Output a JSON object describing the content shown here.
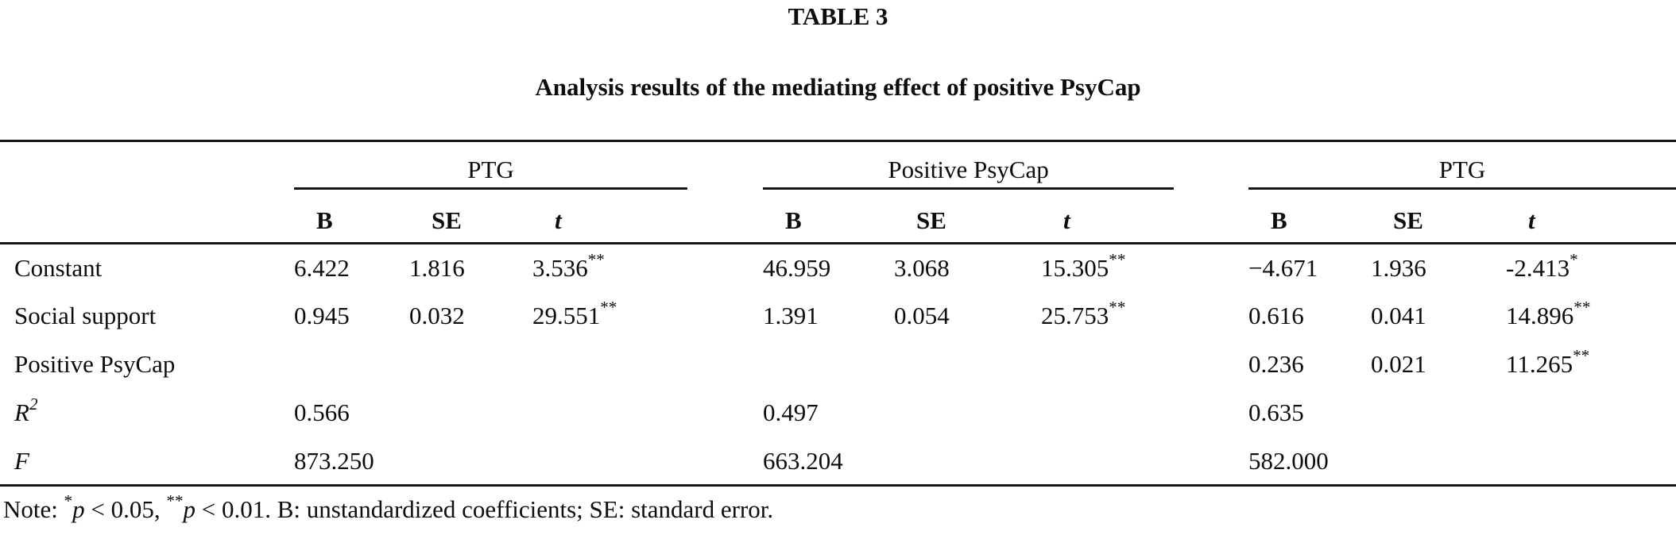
{
  "page": {
    "title": "TABLE 3",
    "subtitle": "Analysis results of the mediating effect of positive PsyCap"
  },
  "table": {
    "groups": [
      {
        "label": "PTG",
        "columns": [
          {
            "label": "B"
          },
          {
            "label": "SE"
          },
          {
            "label": "t"
          }
        ]
      },
      {
        "label": "Positive PsyCap",
        "columns": [
          {
            "label": "B"
          },
          {
            "label": "SE"
          },
          {
            "label": "t"
          }
        ]
      },
      {
        "label": "PTG",
        "columns": [
          {
            "label": "B"
          },
          {
            "label": "SE"
          },
          {
            "label": "t"
          }
        ]
      }
    ],
    "rows": [
      {
        "label": "Constant",
        "italic": false,
        "cells": [
          "6.422",
          "1.816",
          "3.536**",
          "46.959",
          "3.068",
          "15.305**",
          "−4.671",
          "1.936",
          "-2.413*"
        ]
      },
      {
        "label": "Social support",
        "italic": false,
        "cells": [
          "0.945",
          "0.032",
          "29.551**",
          "1.391",
          "0.054",
          "25.753**",
          "0.616",
          "0.041",
          "14.896**"
        ]
      },
      {
        "label": "Positive PsyCap",
        "italic": false,
        "cells": [
          "",
          "",
          "",
          "",
          "",
          "",
          "0.236",
          "0.021",
          "11.265**"
        ]
      },
      {
        "label": "R",
        "label_sup": "2",
        "italic": true,
        "cells": [
          "0.566",
          "",
          "",
          "0.497",
          "",
          "",
          "0.635",
          "",
          ""
        ]
      },
      {
        "label": "F",
        "italic": true,
        "cells": [
          "873.250",
          "",
          "",
          "663.204",
          "",
          "",
          "582.000",
          "",
          ""
        ]
      }
    ]
  },
  "note": {
    "parts": [
      {
        "text": "Note: ",
        "style": "plain"
      },
      {
        "text": "*",
        "style": "sup"
      },
      {
        "text": "p",
        "style": "italic"
      },
      {
        "text": " < 0.05, ",
        "style": "plain"
      },
      {
        "text": "**",
        "style": "sup"
      },
      {
        "text": "p",
        "style": "italic"
      },
      {
        "text": " < 0.01. B: unstandardized coefficients; SE: standard error.",
        "style": "plain"
      }
    ]
  }
}
